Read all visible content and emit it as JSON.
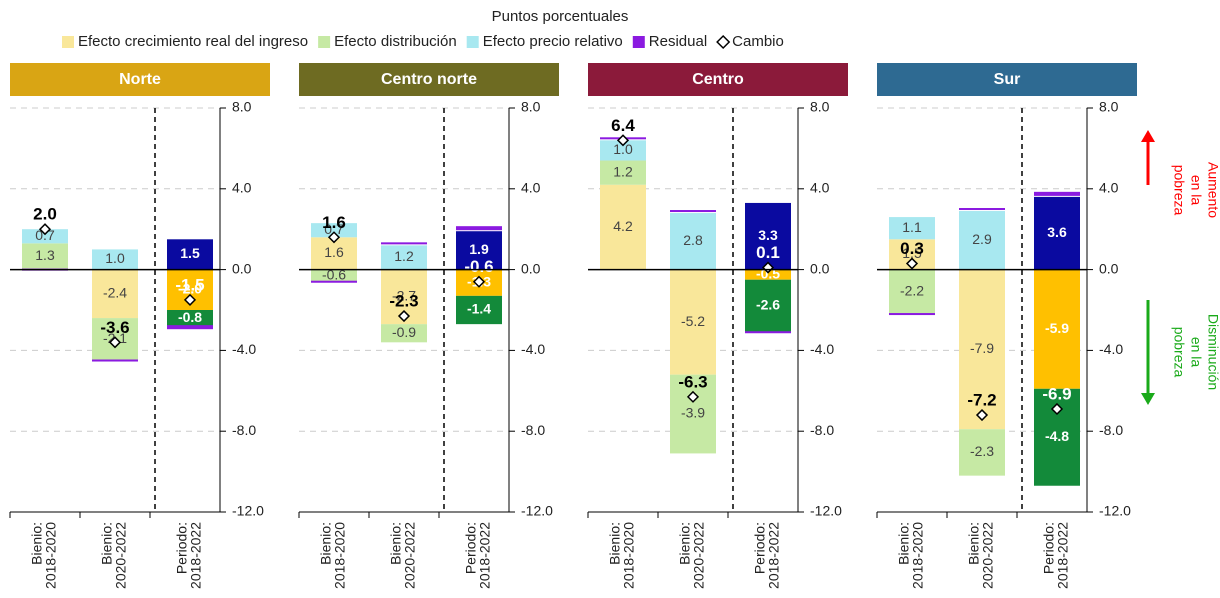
{
  "figure": {
    "subtitle": "Puntos porcentuales",
    "annotations": [
      {
        "lines": [
          "Aumento",
          "en la",
          "pobreza"
        ],
        "color": "#ff0000",
        "direction": "up"
      },
      {
        "lines": [
          "Disminución",
          "en la",
          "pobreza"
        ],
        "color": "#1aaa1a",
        "direction": "down"
      }
    ]
  },
  "chart_data": [
    {
      "type": "stacked-bar",
      "title": "Norte",
      "header_color": "#d9a514",
      "categories": [
        [
          "Bienio:",
          "2018-2020"
        ],
        [
          "Bienio:",
          "2020-2022"
        ],
        [
          "Periodo:",
          "2018-2022"
        ]
      ],
      "ylim": [
        -12,
        8
      ],
      "yticks": [
        {
          "value": -12,
          "label": "-12.0"
        },
        {
          "value": -8,
          "label": "-8.0"
        },
        {
          "value": -4,
          "label": "-4.0"
        },
        {
          "value": 0,
          "label": "0.0"
        },
        {
          "value": 4,
          "label": "4.0"
        },
        {
          "value": 8,
          "label": "8.0"
        }
      ],
      "series": [
        {
          "name": "Efecto crecimiento real del ingreso",
          "colors": [
            "#f9e79a",
            "#f9e79a",
            "#ffc000"
          ],
          "values": [
            null,
            -2.4,
            -2.0
          ],
          "value_labels": [
            null,
            "-2.4",
            "-2.0"
          ]
        },
        {
          "name": "Efecto distribución",
          "colors": [
            "#c6e9a4",
            "#c6e9a4",
            "#138a3a"
          ],
          "values": [
            1.3,
            -2.1,
            -0.8
          ],
          "value_labels": [
            "1.3",
            "-2.1",
            "-0.8"
          ]
        },
        {
          "name": "Efecto precio relativo",
          "colors": [
            "#a8e8f0",
            "#a8e8f0",
            "#0a0aa0"
          ],
          "values": [
            0.7,
            1.0,
            1.5
          ],
          "value_labels": [
            "0.7",
            "1.0",
            "1.5"
          ]
        },
        {
          "name": "Residual",
          "colors": [
            "#8b1ae0",
            "#8b1ae0",
            "#8b1ae0"
          ],
          "values": [
            -0.1,
            -0.1,
            -0.2
          ]
        }
      ],
      "change": {
        "name": "Cambio",
        "values": [
          2.0,
          -3.6,
          -1.5
        ],
        "value_labels": [
          "2.0",
          "-3.6",
          "-1.5"
        ]
      }
    },
    {
      "type": "stacked-bar",
      "title": "Centro norte",
      "header_color": "#6e6b22",
      "categories": [
        [
          "Bienio:",
          "2018-2020"
        ],
        [
          "Bienio:",
          "2020-2022"
        ],
        [
          "Periodo:",
          "2018-2022"
        ]
      ],
      "ylim": [
        -12,
        8
      ],
      "yticks": [
        {
          "value": -12,
          "label": "-12.0"
        },
        {
          "value": -8,
          "label": "-8.0"
        },
        {
          "value": -4,
          "label": "-4.0"
        },
        {
          "value": 0,
          "label": "0.0"
        },
        {
          "value": 4,
          "label": "4.0"
        },
        {
          "value": 8,
          "label": "8.0"
        }
      ],
      "series": [
        {
          "name": "Efecto crecimiento real del ingreso",
          "colors": [
            "#f9e79a",
            "#f9e79a",
            "#ffc000"
          ],
          "values": [
            1.6,
            -2.7,
            -1.3
          ],
          "value_labels": [
            "1.6",
            "-2.7",
            "-1.3"
          ]
        },
        {
          "name": "Efecto distribución",
          "colors": [
            "#c6e9a4",
            "#c6e9a4",
            "#138a3a"
          ],
          "values": [
            -0.6,
            -0.9,
            -1.4
          ],
          "value_labels": [
            "-0.6",
            "-0.9",
            "-1.4"
          ]
        },
        {
          "name": "Efecto precio relativo",
          "colors": [
            "#a8e8f0",
            "#a8e8f0",
            "#0a0aa0"
          ],
          "values": [
            0.7,
            1.2,
            1.9
          ],
          "value_labels": [
            "0.7",
            "1.2",
            "1.9"
          ]
        },
        {
          "name": "Residual",
          "colors": [
            "#8b1ae0",
            "#8b1ae0",
            "#8b1ae0"
          ],
          "values": [
            -0.1,
            0.1,
            0.2
          ]
        }
      ],
      "change": {
        "name": "Cambio",
        "values": [
          1.6,
          -2.3,
          -0.6
        ],
        "value_labels": [
          "1.6",
          "-2.3",
          "-0.6"
        ]
      }
    },
    {
      "type": "stacked-bar",
      "title": "Centro",
      "header_color": "#8b1a3a",
      "categories": [
        [
          "Bienio:",
          "2018-2020"
        ],
        [
          "Bienio:",
          "2020-2022"
        ],
        [
          "Periodo:",
          "2018-2022"
        ]
      ],
      "ylim": [
        -12,
        8
      ],
      "yticks": [
        {
          "value": -12,
          "label": "-12.0"
        },
        {
          "value": -8,
          "label": "-8.0"
        },
        {
          "value": -4,
          "label": "-4.0"
        },
        {
          "value": 0,
          "label": "0.0"
        },
        {
          "value": 4,
          "label": "4.0"
        },
        {
          "value": 8,
          "label": "8.0"
        }
      ],
      "series": [
        {
          "name": "Efecto crecimiento real del ingreso",
          "colors": [
            "#f9e79a",
            "#f9e79a",
            "#ffc000"
          ],
          "values": [
            4.2,
            -5.2,
            -0.5
          ],
          "value_labels": [
            "4.2",
            "-5.2",
            "-0.5"
          ]
        },
        {
          "name": "Efecto distribución",
          "colors": [
            "#c6e9a4",
            "#c6e9a4",
            "#138a3a"
          ],
          "values": [
            1.2,
            -3.9,
            -2.6
          ],
          "value_labels": [
            "1.2",
            "-3.9",
            "-2.6"
          ]
        },
        {
          "name": "Efecto precio relativo",
          "colors": [
            "#a8e8f0",
            "#a8e8f0",
            "#0a0aa0"
          ],
          "values": [
            1.0,
            2.8,
            3.3
          ],
          "value_labels": [
            "1.0",
            "2.8",
            "3.3"
          ]
        },
        {
          "name": "Residual",
          "colors": [
            "#8b1ae0",
            "#8b1ae0",
            "#8b1ae0"
          ],
          "values": [
            0.1,
            0.1,
            -0.1
          ]
        }
      ],
      "change": {
        "name": "Cambio",
        "values": [
          6.4,
          -6.3,
          0.1
        ],
        "value_labels": [
          "6.4",
          "-6.3",
          "0.1"
        ]
      }
    },
    {
      "type": "stacked-bar",
      "title": "Sur",
      "header_color": "#2e6a92",
      "categories": [
        [
          "Bienio:",
          "2018-2020"
        ],
        [
          "Bienio:",
          "2020-2022"
        ],
        [
          "Periodo:",
          "2018-2022"
        ]
      ],
      "ylim": [
        -12,
        8
      ],
      "yticks": [
        {
          "value": -12,
          "label": "-12.0"
        },
        {
          "value": -8,
          "label": "-8.0"
        },
        {
          "value": -4,
          "label": "-4.0"
        },
        {
          "value": 0,
          "label": "0.0"
        },
        {
          "value": 4,
          "label": "4.0"
        },
        {
          "value": 8,
          "label": "8.0"
        }
      ],
      "series": [
        {
          "name": "Efecto crecimiento real del ingreso",
          "colors": [
            "#f9e79a",
            "#f9e79a",
            "#ffc000"
          ],
          "values": [
            1.5,
            -7.9,
            -5.9
          ],
          "value_labels": [
            "1.5",
            "-7.9",
            "-5.9"
          ]
        },
        {
          "name": "Efecto distribución",
          "colors": [
            "#c6e9a4",
            "#c6e9a4",
            "#138a3a"
          ],
          "values": [
            -2.2,
            -2.3,
            -4.8
          ],
          "value_labels": [
            "-2.2",
            "-2.3",
            "-4.8"
          ]
        },
        {
          "name": "Efecto precio relativo",
          "colors": [
            "#a8e8f0",
            "#a8e8f0",
            "#0a0aa0"
          ],
          "values": [
            1.1,
            2.9,
            3.6
          ],
          "value_labels": [
            "1.1",
            "2.9",
            "3.6"
          ]
        },
        {
          "name": "Residual",
          "colors": [
            "#8b1ae0",
            "#8b1ae0",
            "#8b1ae0"
          ],
          "values": [
            -0.1,
            0.1,
            0.2
          ]
        }
      ],
      "change": {
        "name": "Cambio",
        "values": [
          0.3,
          -7.2,
          -6.9
        ],
        "value_labels": [
          "0.3",
          "-7.2",
          "-6.9"
        ]
      }
    }
  ]
}
